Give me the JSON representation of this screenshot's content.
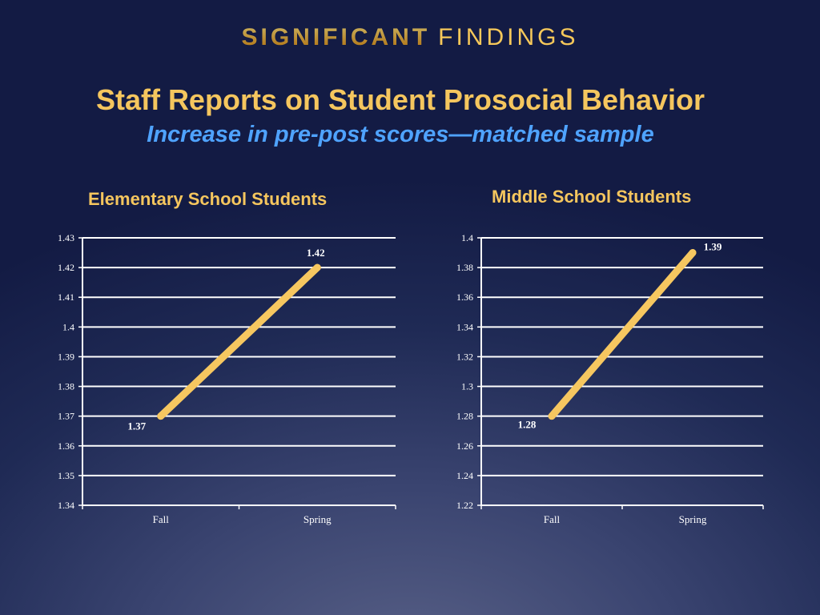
{
  "header": {
    "title_part1": "SIGNIFICANT",
    "title_part2": "FINDINGS",
    "subtitle": "Staff Reports on Student Prosocial Behavior",
    "subsubtitle": "Increase in pre-post scores—matched sample"
  },
  "colors": {
    "line": "#f6c760",
    "gridline": "#ffffff",
    "title": "#f5c65e",
    "subsubtitle": "#4fa3ff"
  },
  "chart_data": [
    {
      "type": "line",
      "title": "Elementary School Students",
      "categories": [
        "Fall",
        "Spring"
      ],
      "values": [
        1.37,
        1.42
      ],
      "data_labels": [
        "1.37",
        "1.42"
      ],
      "ylim": [
        1.34,
        1.43
      ],
      "yticks": [
        "1.34",
        "1.35",
        "1.36",
        "1.37",
        "1.38",
        "1.39",
        "1.4",
        "1.41",
        "1.42",
        "1.43"
      ],
      "grid": true,
      "xlabel": "",
      "ylabel": ""
    },
    {
      "type": "line",
      "title": "Middle School Students",
      "categories": [
        "Fall",
        "Spring"
      ],
      "values": [
        1.28,
        1.39
      ],
      "data_labels": [
        "1.28",
        "1.39"
      ],
      "ylim": [
        1.22,
        1.4
      ],
      "yticks": [
        "1.22",
        "1.24",
        "1.26",
        "1.28",
        "1.3",
        "1.32",
        "1.34",
        "1.36",
        "1.38",
        "1.4"
      ],
      "grid": true,
      "xlabel": "",
      "ylabel": ""
    }
  ]
}
